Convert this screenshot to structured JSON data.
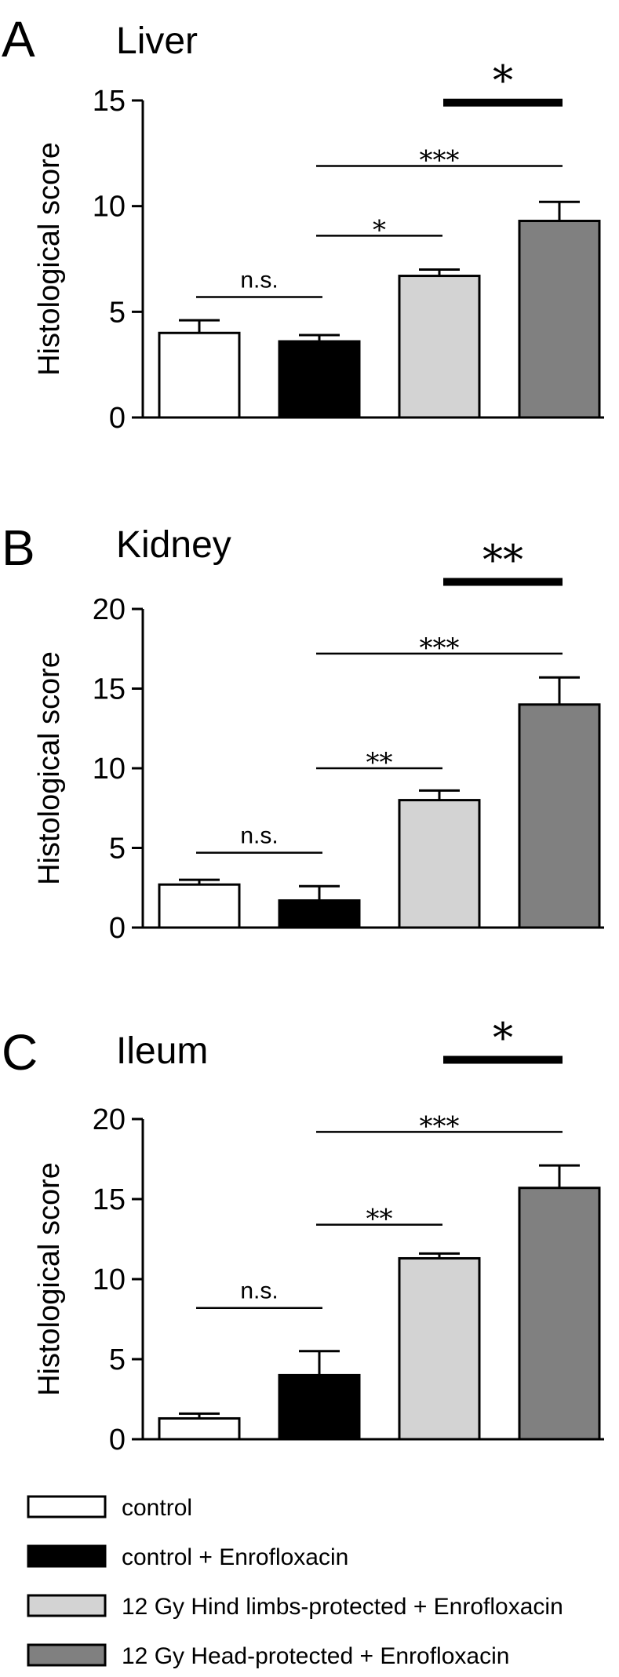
{
  "chart_data": [
    {
      "type": "bar",
      "panel": "A",
      "title": "Liver",
      "ylabel": "Histological score",
      "ylim": [
        0,
        15
      ],
      "yticks": [
        "0",
        "5",
        "10",
        "15"
      ],
      "categories": [
        "control",
        "control + Enrofloxacin",
        "12 Gy Hind limbs-protected + Enrofloxacin",
        "12 Gy Head-protected + Enrofloxacin"
      ],
      "values": [
        4.0,
        3.6,
        6.7,
        9.3
      ],
      "errors": [
        0.6,
        0.3,
        0.3,
        0.9
      ],
      "significance": [
        {
          "from": 0,
          "to": 1,
          "label": "n.s.",
          "y": 5.7,
          "style": "thin",
          "kind": "ns"
        },
        {
          "from": 1,
          "to": 2,
          "label": "*",
          "y": 8.6,
          "style": "thin",
          "kind": "star"
        },
        {
          "from": 1,
          "to": 3,
          "label": "***",
          "y": 11.9,
          "style": "thin",
          "kind": "star"
        },
        {
          "from": 2,
          "to": 3,
          "label": "*",
          "y": 14.9,
          "style": "thick",
          "kind": "star"
        }
      ]
    },
    {
      "type": "bar",
      "panel": "B",
      "title": "Kidney",
      "ylabel": "Histological score",
      "ylim": [
        0,
        20
      ],
      "yticks": [
        "0",
        "5",
        "10",
        "15",
        "20"
      ],
      "categories": [
        "control",
        "control + Enrofloxacin",
        "12 Gy Hind limbs-protected + Enrofloxacin",
        "12 Gy Head-protected + Enrofloxacin"
      ],
      "values": [
        2.7,
        1.7,
        8.0,
        14.0
      ],
      "errors": [
        0.3,
        0.9,
        0.6,
        1.7
      ],
      "significance": [
        {
          "from": 0,
          "to": 1,
          "label": "n.s.",
          "y": 4.7,
          "style": "thin",
          "kind": "ns"
        },
        {
          "from": 1,
          "to": 2,
          "label": "**",
          "y": 10.0,
          "style": "thin",
          "kind": "star"
        },
        {
          "from": 1,
          "to": 3,
          "label": "***",
          "y": 17.2,
          "style": "thin",
          "kind": "star"
        },
        {
          "from": 2,
          "to": 3,
          "label": "**",
          "y": 21.7,
          "style": "thick",
          "kind": "star"
        }
      ]
    },
    {
      "type": "bar",
      "panel": "C",
      "title": "Ileum",
      "ylabel": "Histological score",
      "ylim": [
        0,
        20
      ],
      "yticks": [
        "0",
        "5",
        "10",
        "15",
        "20"
      ],
      "categories": [
        "control",
        "control + Enrofloxacin",
        "12 Gy Hind limbs-protected + Enrofloxacin",
        "12 Gy Head-protected + Enrofloxacin"
      ],
      "values": [
        1.3,
        4.0,
        11.3,
        15.7
      ],
      "errors": [
        0.3,
        1.5,
        0.3,
        1.4
      ],
      "significance": [
        {
          "from": 0,
          "to": 1,
          "label": "n.s.",
          "y": 8.2,
          "style": "thin",
          "kind": "ns"
        },
        {
          "from": 1,
          "to": 2,
          "label": "**",
          "y": 13.4,
          "style": "thin",
          "kind": "star"
        },
        {
          "from": 1,
          "to": 3,
          "label": "***",
          "y": 19.2,
          "style": "thin",
          "kind": "star"
        },
        {
          "from": 2,
          "to": 3,
          "label": "*",
          "y": 23.7,
          "style": "thick",
          "kind": "star"
        }
      ]
    }
  ],
  "legend": [
    {
      "label": "control",
      "color": "#ffffff"
    },
    {
      "label": "control + Enrofloxacin",
      "color": "#000000"
    },
    {
      "label": "12 Gy Hind limbs-protected + Enrofloxacin",
      "color": "#d3d3d3"
    },
    {
      "label": "12 Gy Head-protected + Enrofloxacin",
      "color": "#808080"
    }
  ],
  "colors": {
    "bar_fills": [
      "#ffffff",
      "#000000",
      "#d3d3d3",
      "#808080"
    ],
    "stroke": "#000000"
  }
}
